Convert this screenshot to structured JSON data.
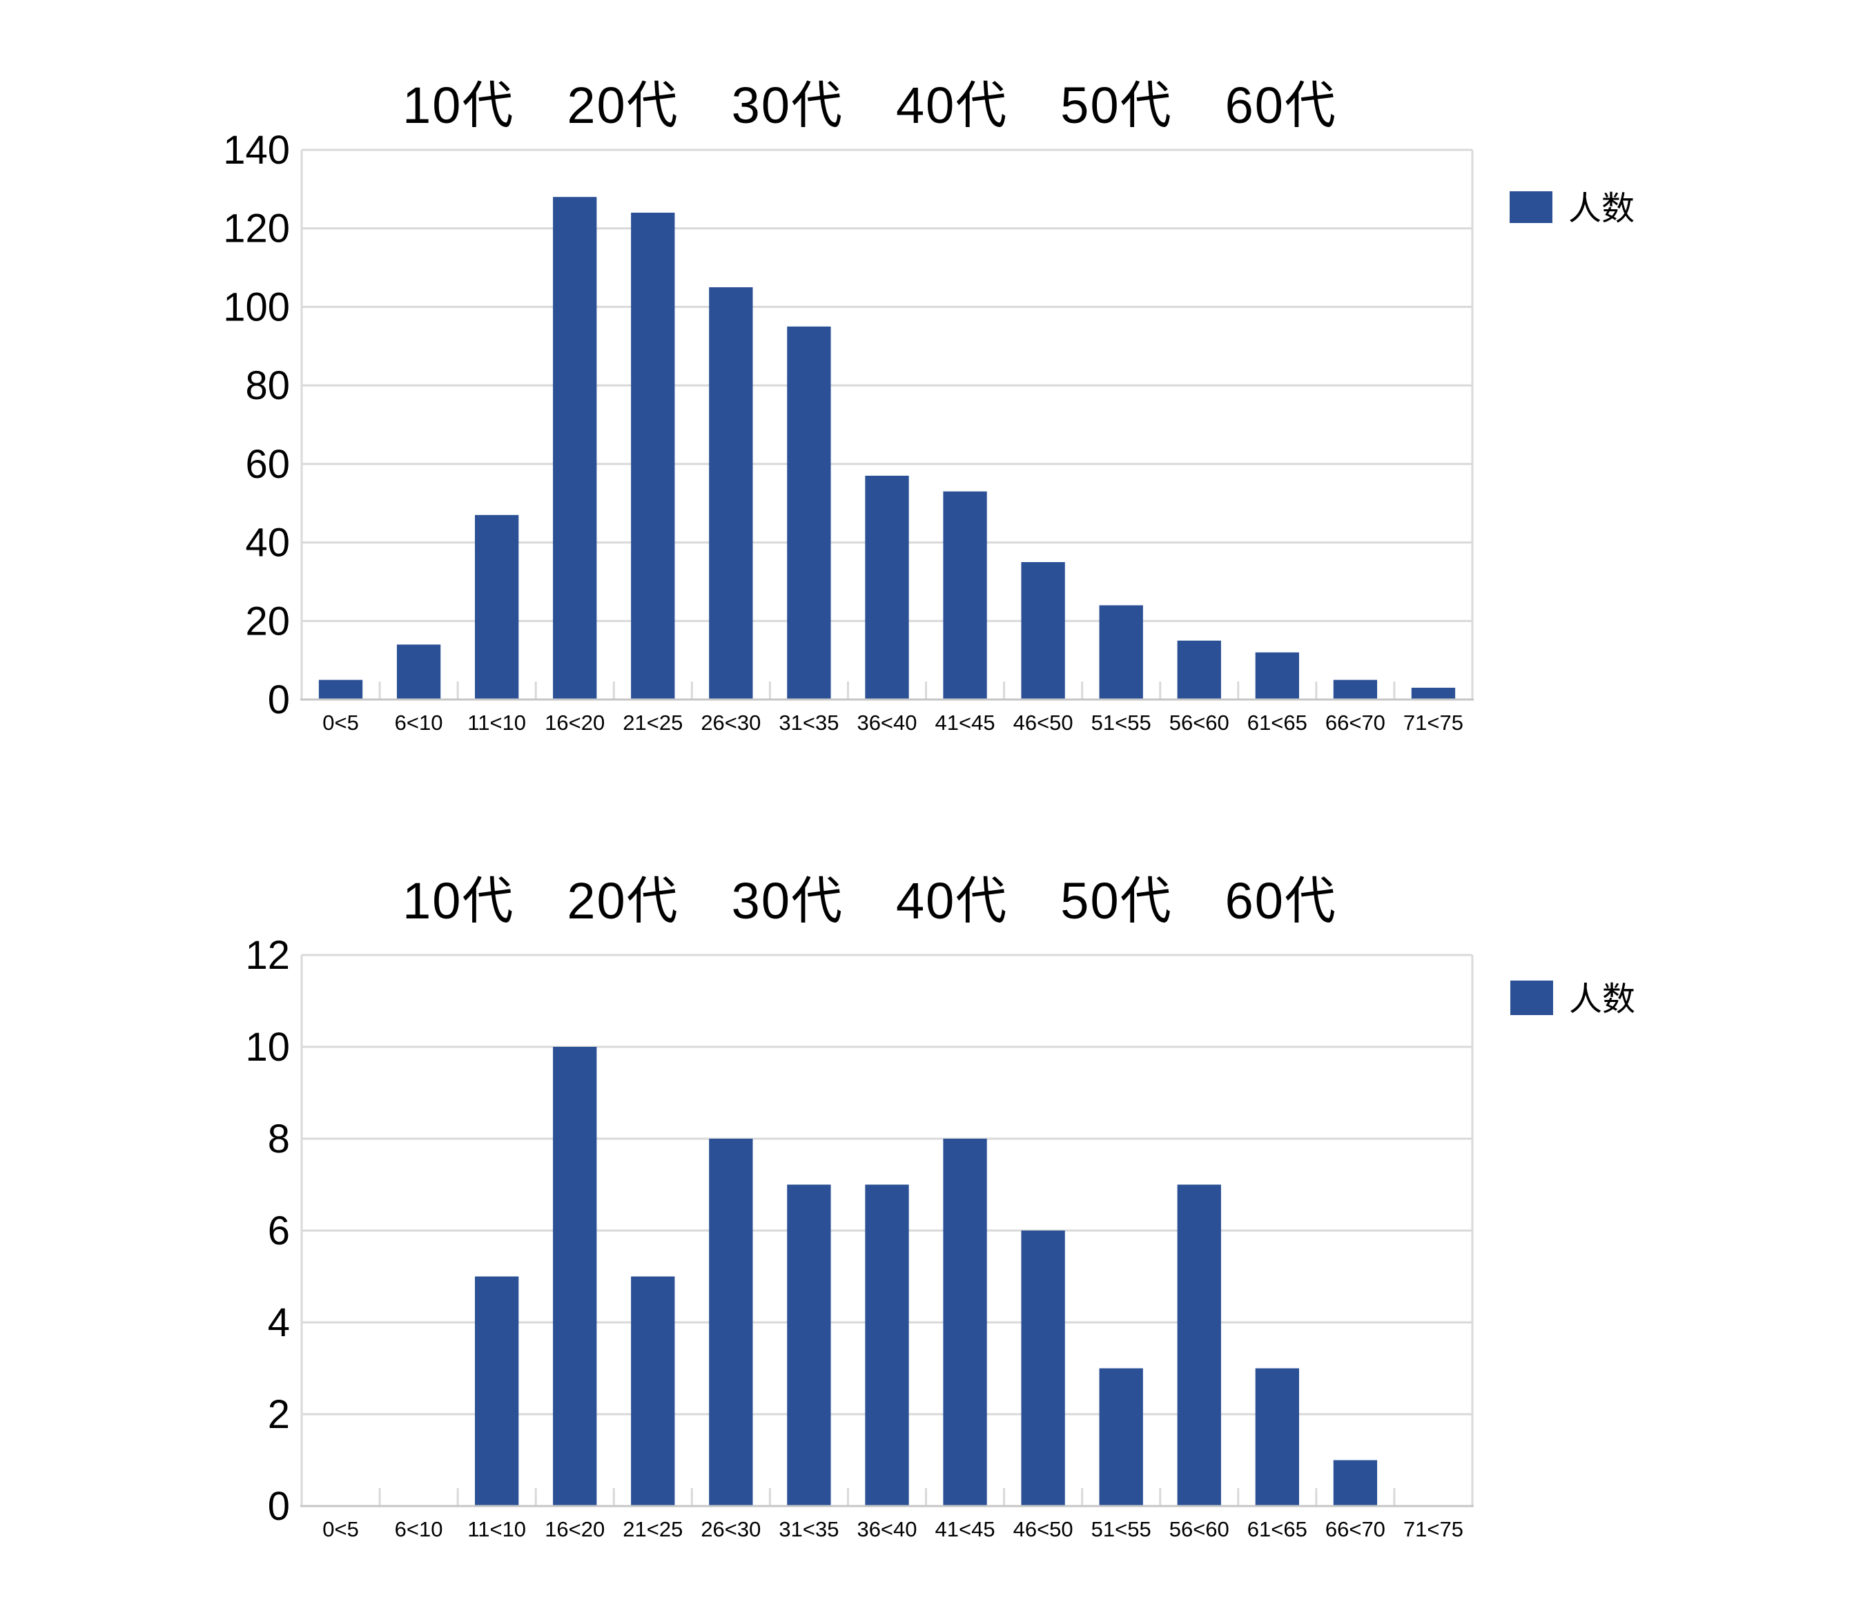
{
  "page": {
    "background": "#ffffff"
  },
  "colors": {
    "bar": "#2b5095",
    "grid": "#d9d9d9",
    "axis_line": "#c6c6c6",
    "text": "#000000"
  },
  "chart_data": [
    {
      "type": "bar",
      "title": "10代　20代　30代　40代　50代　60代",
      "legend": [
        "人数"
      ],
      "legend_position": "right-top",
      "grid": true,
      "categories": [
        "0<5",
        "6<10",
        "11<10",
        "16<20",
        "21<25",
        "26<30",
        "31<35",
        "36<40",
        "41<45",
        "46<50",
        "51<55",
        "56<60",
        "61<65",
        "66<70",
        "71<75"
      ],
      "series": [
        {
          "name": "人数",
          "values": [
            5,
            14,
            47,
            128,
            124,
            105,
            95,
            57,
            53,
            35,
            24,
            15,
            12,
            5,
            3
          ]
        }
      ],
      "values": [
        5,
        14,
        47,
        128,
        124,
        105,
        95,
        57,
        53,
        35,
        24,
        15,
        12,
        5,
        3
      ],
      "xlabel": "",
      "ylabel": "",
      "ylim": [
        0,
        140
      ],
      "ytick_interval": 20,
      "yticks": [
        0,
        20,
        40,
        60,
        80,
        100,
        120,
        140
      ]
    },
    {
      "type": "bar",
      "title": "10代　20代　30代　40代　50代　60代",
      "legend": [
        "人数"
      ],
      "legend_position": "right-top",
      "grid": true,
      "categories": [
        "0<5",
        "6<10",
        "11<10",
        "16<20",
        "21<25",
        "26<30",
        "31<35",
        "36<40",
        "41<45",
        "46<50",
        "51<55",
        "56<60",
        "61<65",
        "66<70",
        "71<75"
      ],
      "series": [
        {
          "name": "人数",
          "values": [
            0,
            0,
            5,
            10,
            5,
            8,
            7,
            7,
            8,
            6,
            3,
            7,
            3,
            1,
            0
          ]
        }
      ],
      "values": [
        0,
        0,
        5,
        10,
        5,
        8,
        7,
        7,
        8,
        6,
        3,
        7,
        3,
        1,
        0
      ],
      "xlabel": "",
      "ylabel": "",
      "ylim": [
        0,
        12
      ],
      "ytick_interval": 2,
      "yticks": [
        0,
        2,
        4,
        6,
        8,
        10,
        12
      ]
    }
  ]
}
